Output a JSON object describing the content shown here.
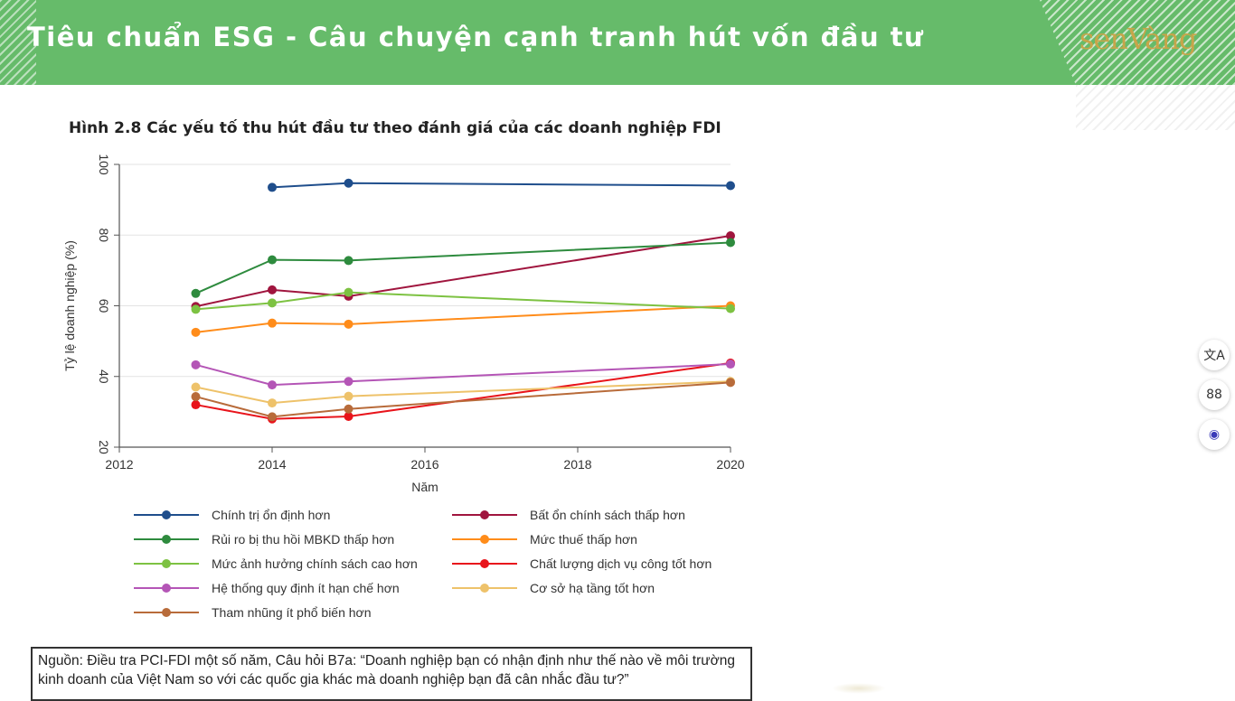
{
  "header": {
    "title": "Tiêu chuẩn ESG - Câu chuyện cạnh tranh hút vốn đầu tư",
    "logo_text": "senVàng"
  },
  "figure_title": "Hình 2.8 Các yếu tố thu hút đầu tư theo đánh giá của các doanh nghiệp FDI",
  "chart_data": {
    "type": "line",
    "xlabel": "Năm",
    "ylabel": "Tỷ lệ doanh nghiệp (%)",
    "xlim": [
      2012,
      2020
    ],
    "ylim": [
      20,
      100
    ],
    "xticks": [
      2012,
      2014,
      2016,
      2018,
      2020
    ],
    "yticks": [
      20,
      40,
      60,
      80,
      100
    ],
    "grid": "horizontal",
    "legend_position": "bottom",
    "series": [
      {
        "name": "Chính trị ổn định hơn",
        "color": "#1f4e8c",
        "points": [
          [
            2014,
            93.5
          ],
          [
            2015,
            94.7
          ],
          [
            2020,
            94.0
          ]
        ]
      },
      {
        "name": "Bất ổn chính sách thấp hơn",
        "color": "#a0153e",
        "points": [
          [
            2013,
            59.8
          ],
          [
            2014,
            64.5
          ],
          [
            2015,
            62.7
          ],
          [
            2020,
            79.8
          ]
        ]
      },
      {
        "name": "Rủi ro bị thu hồi MBKD thấp hơn",
        "color": "#2e8b3e",
        "points": [
          [
            2013,
            63.5
          ],
          [
            2014,
            73.0
          ],
          [
            2015,
            72.8
          ],
          [
            2020,
            77.9
          ]
        ]
      },
      {
        "name": "Mức thuế thấp hơn",
        "color": "#ff8c1a",
        "points": [
          [
            2013,
            52.5
          ],
          [
            2014,
            55.1
          ],
          [
            2015,
            54.8
          ],
          [
            2020,
            60.0
          ]
        ]
      },
      {
        "name": "Mức ảnh hưởng chính sách cao hơn",
        "color": "#7dc242",
        "points": [
          [
            2013,
            59.0
          ],
          [
            2014,
            60.8
          ],
          [
            2015,
            63.8
          ],
          [
            2020,
            59.2
          ]
        ]
      },
      {
        "name": "Chất lượng dịch vụ công tốt hơn",
        "color": "#e8141b",
        "points": [
          [
            2013,
            32.0
          ],
          [
            2014,
            28.0
          ],
          [
            2015,
            28.7
          ],
          [
            2020,
            43.8
          ]
        ]
      },
      {
        "name": "Hệ thống quy định ít hạn chế hơn",
        "color": "#b455b6",
        "points": [
          [
            2013,
            43.3
          ],
          [
            2014,
            37.6
          ],
          [
            2015,
            38.6
          ],
          [
            2020,
            43.5
          ]
        ]
      },
      {
        "name": "Cơ sở hạ tầng tốt hơn",
        "color": "#eec26a",
        "points": [
          [
            2013,
            37.0
          ],
          [
            2014,
            32.5
          ],
          [
            2015,
            34.4
          ],
          [
            2020,
            38.6
          ]
        ]
      },
      {
        "name": "Tham nhũng ít phổ biến hơn",
        "color": "#b86b3a",
        "points": [
          [
            2013,
            34.3
          ],
          [
            2014,
            28.6
          ],
          [
            2015,
            30.8
          ],
          [
            2020,
            38.3
          ]
        ]
      }
    ]
  },
  "legend_layout": [
    [
      0,
      1
    ],
    [
      2,
      3
    ],
    [
      4,
      5
    ],
    [
      6,
      7
    ],
    [
      8
    ]
  ],
  "source": {
    "line1": "Nguồn: Điều tra PCI-FDI một số năm, Câu hỏi B7a: “Doanh nghiệp bạn có nhận định như thế nào về môi trường",
    "line2": "kinh doanh của Việt Nam so với các quốc gia khác mà doanh nghiệp bạn đã cân nhắc đầu tư?”"
  },
  "side_tools": [
    {
      "icon": "translate-icon",
      "glyph": "文A"
    },
    {
      "icon": "apps-icon",
      "glyph": "88"
    },
    {
      "icon": "assistant-icon",
      "glyph": "◉"
    }
  ]
}
